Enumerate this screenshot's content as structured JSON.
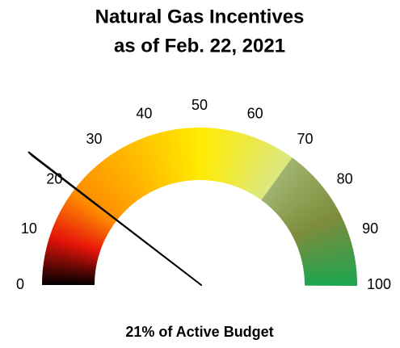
{
  "chart_data": {
    "type": "gauge",
    "title": [
      "Natural Gas Incentives",
      "as of Feb. 22, 2021"
    ],
    "value": 21,
    "value_label": "21% of Active Budget",
    "lim": [
      0,
      100
    ],
    "ticks": [
      0,
      10,
      20,
      30,
      40,
      50,
      60,
      70,
      80,
      90,
      100
    ]
  }
}
